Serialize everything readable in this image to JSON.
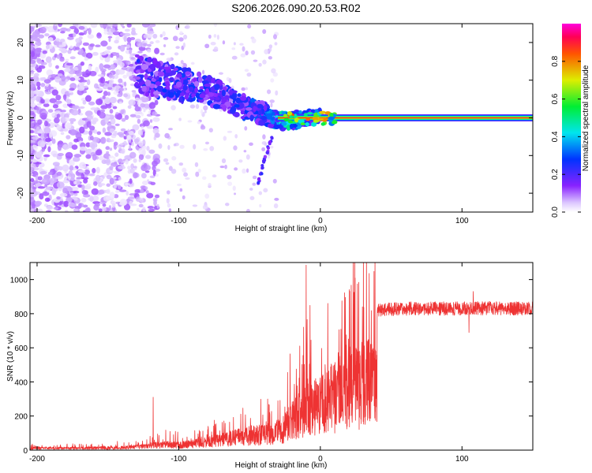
{
  "figure_title": "S206.2026.090.20.53.R02",
  "colors": {
    "snr_line": "#ee3333",
    "axis": "#000000"
  },
  "chart_data": [
    {
      "type": "heatmap",
      "title": "S206.2026.090.20.53.R02",
      "xlabel": "Height of straight line (km)",
      "ylabel": "Frequency (Hz)",
      "xlim": [
        -205,
        150
      ],
      "ylim": [
        -25,
        25
      ],
      "x_ticks": [
        -200,
        -100,
        0,
        100
      ],
      "x_tick_labels": [
        "-200",
        "-100",
        "0",
        "100"
      ],
      "y_ticks": [
        -20,
        -10,
        0,
        10,
        20
      ],
      "y_tick_labels": [
        "-20",
        "-10",
        "0",
        "10",
        "20"
      ],
      "colorbar": {
        "label": "Normalized spectral amplitude",
        "range": [
          0,
          1
        ],
        "ticks": [
          0.0,
          0.2,
          0.4,
          0.6,
          0.8
        ],
        "tick_labels": [
          "0.0",
          "0.2",
          "0.4",
          "0.6",
          "0.8"
        ]
      },
      "description_series": [
        {
          "name": "carrier_ridge",
          "x_range": [
            -30,
            150
          ],
          "frequency": 0,
          "amplitude": 0.9
        },
        {
          "name": "ridge_path",
          "x": [
            -130,
            -115,
            -100,
            -85,
            -70,
            -55,
            -40,
            -25,
            -10,
            0
          ],
          "frequency": [
            12,
            10,
            9,
            8,
            6,
            3,
            1,
            -1,
            0,
            0.5
          ],
          "amplitude": [
            0.25,
            0.3,
            0.3,
            0.3,
            0.25,
            0.3,
            0.35,
            0.55,
            0.35,
            0.4
          ]
        }
      ]
    },
    {
      "type": "line",
      "xlabel": "Height of straight line (km)",
      "ylabel": "SNR (10 * v/v)",
      "xlim": [
        -205,
        150
      ],
      "ylim": [
        0,
        1100
      ],
      "x_ticks": [
        -200,
        -100,
        0,
        100
      ],
      "x_tick_labels": [
        "-200",
        "-100",
        "0",
        "100"
      ],
      "y_ticks": [
        0,
        200,
        400,
        600,
        800,
        1000
      ],
      "y_tick_labels": [
        "0",
        "200",
        "400",
        "600",
        "800",
        "1000"
      ],
      "series": [
        {
          "name": "SNR",
          "color": "#ee3333",
          "envelope_x": [
            -205,
            -160,
            -140,
            -130,
            -120,
            -110,
            -100,
            -90,
            -80,
            -70,
            -60,
            -50,
            -40,
            -35,
            -30,
            -25,
            -20,
            -15,
            -10,
            -5,
            0,
            5,
            10,
            15,
            20,
            25,
            30,
            35,
            40,
            50,
            60,
            80,
            100,
            120,
            150
          ],
          "envelope_y": [
            22,
            25,
            30,
            40,
            55,
            70,
            60,
            75,
            100,
            130,
            150,
            180,
            190,
            200,
            220,
            280,
            360,
            420,
            500,
            520,
            540,
            600,
            660,
            720,
            760,
            790,
            805,
            815,
            820,
            825,
            830,
            830,
            830,
            832,
            830
          ],
          "spikes": [
            {
              "x": -118,
              "y": 310
            },
            {
              "x": -10,
              "y": 1085
            },
            {
              "x": 108,
              "y": 930
            },
            {
              "x": 105,
              "y": 690
            }
          ]
        }
      ]
    }
  ]
}
